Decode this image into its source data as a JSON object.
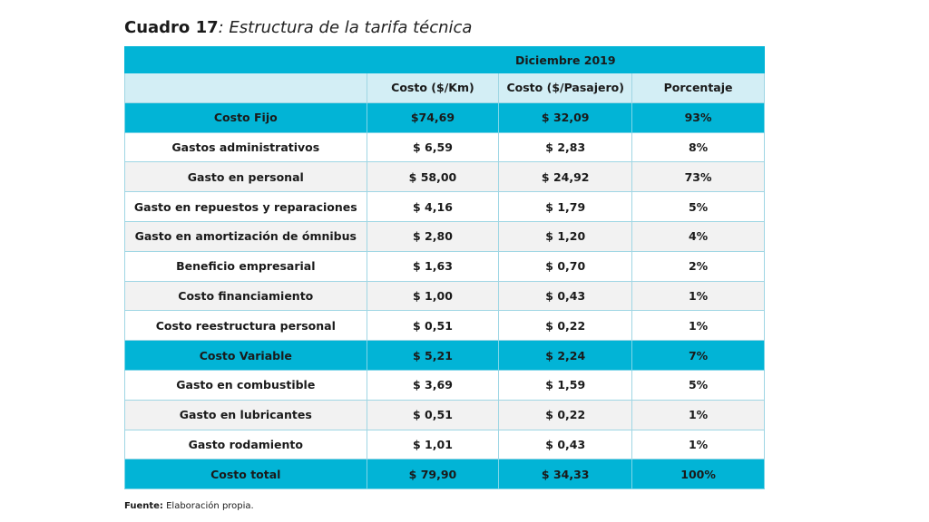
{
  "title": {
    "label": "Cuadro 17",
    "subtitle": ": Estructura de la tarifa técnica"
  },
  "table": {
    "period": "Diciembre 2019",
    "headers": [
      "",
      "Costo ($/Km)",
      "Costo ($/Pasajero)",
      "Porcentaje"
    ],
    "rows": [
      {
        "type": "group",
        "cells": [
          "Costo Fijo",
          "$74,69",
          "$ 32,09",
          "93%"
        ]
      },
      {
        "type": "odd",
        "cells": [
          "Gastos administrativos",
          "$ 6,59",
          "$ 2,83",
          "8%"
        ]
      },
      {
        "type": "even",
        "cells": [
          "Gasto en personal",
          "$ 58,00",
          "$ 24,92",
          "73%"
        ]
      },
      {
        "type": "odd",
        "cells": [
          "Gasto en repuestos y reparaciones",
          "$ 4,16",
          "$ 1,79",
          "5%"
        ]
      },
      {
        "type": "even",
        "cells": [
          "Gasto en amortización de ómnibus",
          "$ 2,80",
          "$ 1,20",
          "4%"
        ]
      },
      {
        "type": "odd",
        "cells": [
          "Beneficio empresarial",
          "$ 1,63",
          "$ 0,70",
          "2%"
        ]
      },
      {
        "type": "even",
        "cells": [
          "Costo financiamiento",
          "$ 1,00",
          "$ 0,43",
          "1%"
        ]
      },
      {
        "type": "odd",
        "cells": [
          "Costo reestructura personal",
          "$ 0,51",
          "$ 0,22",
          "1%"
        ]
      },
      {
        "type": "group",
        "cells": [
          "Costo Variable",
          "$ 5,21",
          "$ 2,24",
          "7%"
        ]
      },
      {
        "type": "odd",
        "cells": [
          "Gasto en combustible",
          "$ 3,69",
          "$ 1,59",
          "5%"
        ]
      },
      {
        "type": "even",
        "cells": [
          "Gasto en lubricantes",
          "$ 0,51",
          "$ 0,22",
          "1%"
        ]
      },
      {
        "type": "odd",
        "cells": [
          "Gasto rodamiento",
          "$ 1,01",
          "$ 0,43",
          "1%"
        ]
      },
      {
        "type": "group",
        "cells": [
          "Costo total",
          "$ 79,90",
          "$ 34,33",
          "100%"
        ]
      }
    ]
  },
  "footer": {
    "label": "Fuente:",
    "text": " Elaboración propia."
  }
}
